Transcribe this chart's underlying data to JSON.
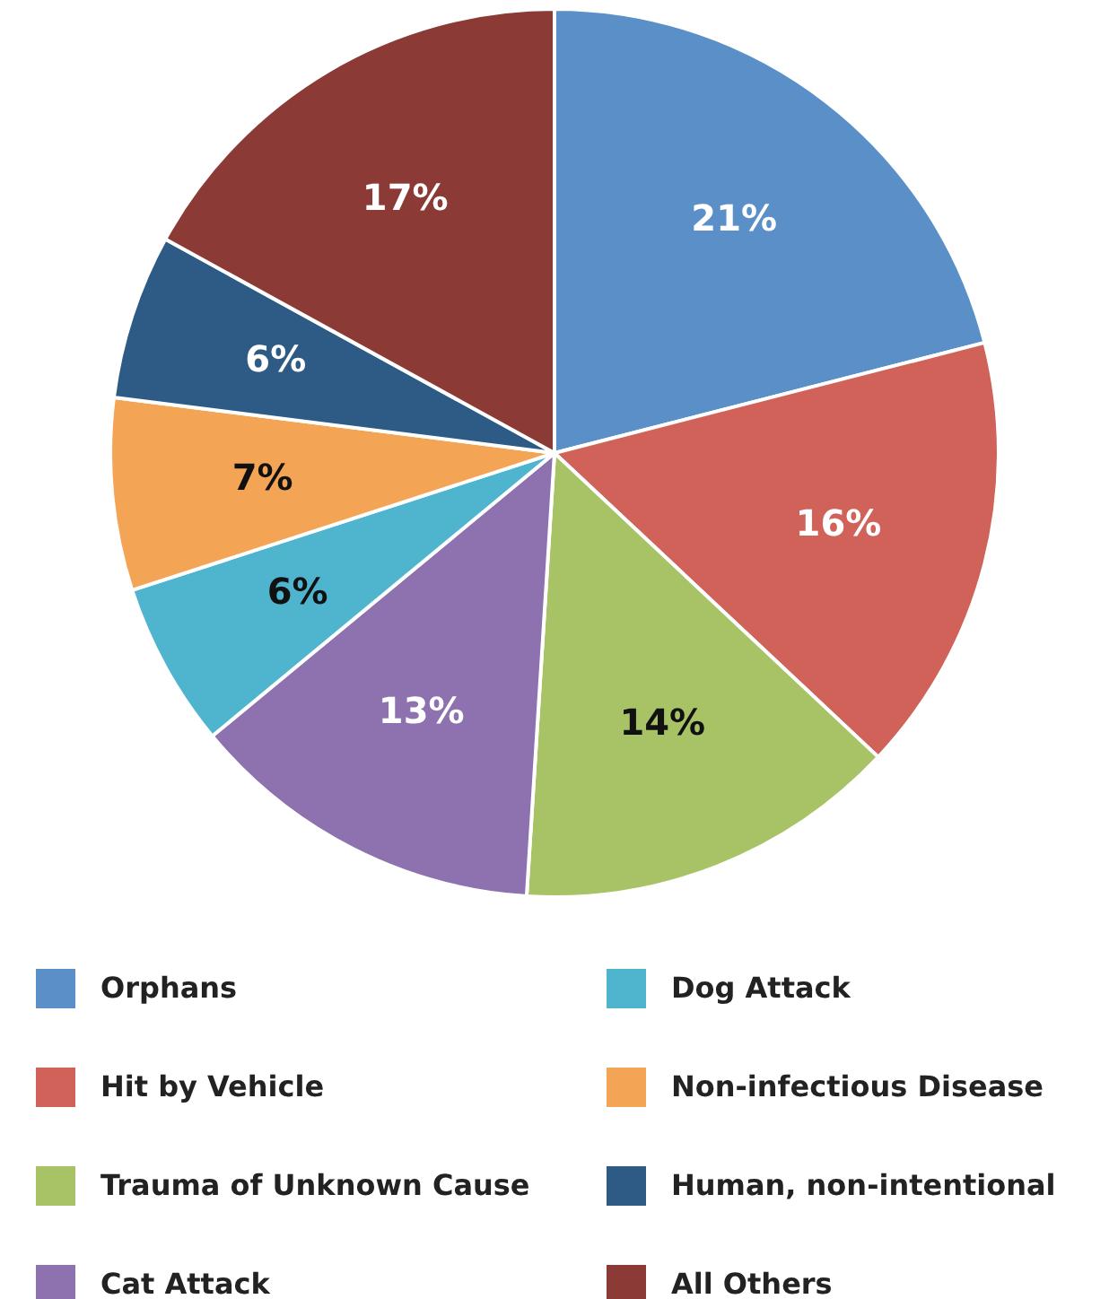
{
  "chart_data": {
    "type": "pie",
    "categories": [
      "Orphans",
      "Hit by Vehicle",
      "Trauma of Unknown Cause",
      "Cat Attack",
      "Dog Attack",
      "Non-infectious Disease",
      "Human, non-intentional",
      "All Others"
    ],
    "values": [
      21,
      16,
      14,
      13,
      6,
      7,
      6,
      17
    ],
    "colors": [
      "#5b8fc8",
      "#d0625a",
      "#a8c266",
      "#8e72b0",
      "#4fb5cf",
      "#f4a455",
      "#2e5b86",
      "#8b3a36"
    ],
    "value_labels": [
      "21%",
      "16%",
      "14%",
      "13%",
      "6%",
      "7%",
      "6%",
      "17%"
    ],
    "legend": "bottom"
  }
}
